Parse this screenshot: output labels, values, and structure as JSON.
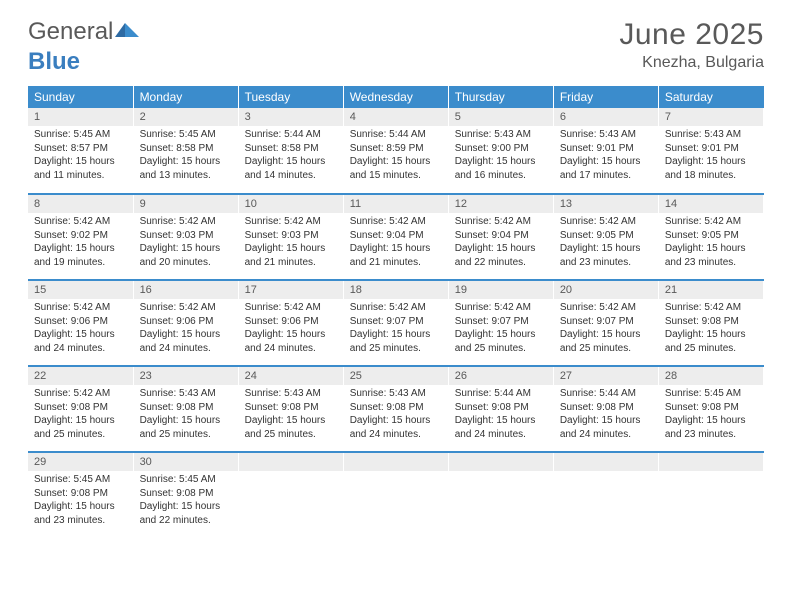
{
  "brand": {
    "part1": "General",
    "part2": "Blue"
  },
  "title": {
    "month": "June 2025",
    "location": "Knezha, Bulgaria"
  },
  "colors": {
    "header_bg": "#3b8ccc",
    "header_text": "#ffffff",
    "daynum_bg": "#ededed",
    "text": "#333333",
    "muted": "#595959",
    "rule": "#3b8ccc"
  },
  "weekdays": [
    "Sunday",
    "Monday",
    "Tuesday",
    "Wednesday",
    "Thursday",
    "Friday",
    "Saturday"
  ],
  "days": [
    {
      "n": "1",
      "sr": "5:45 AM",
      "ss": "8:57 PM",
      "dl": "15 hours and 11 minutes."
    },
    {
      "n": "2",
      "sr": "5:45 AM",
      "ss": "8:58 PM",
      "dl": "15 hours and 13 minutes."
    },
    {
      "n": "3",
      "sr": "5:44 AM",
      "ss": "8:58 PM",
      "dl": "15 hours and 14 minutes."
    },
    {
      "n": "4",
      "sr": "5:44 AM",
      "ss": "8:59 PM",
      "dl": "15 hours and 15 minutes."
    },
    {
      "n": "5",
      "sr": "5:43 AM",
      "ss": "9:00 PM",
      "dl": "15 hours and 16 minutes."
    },
    {
      "n": "6",
      "sr": "5:43 AM",
      "ss": "9:01 PM",
      "dl": "15 hours and 17 minutes."
    },
    {
      "n": "7",
      "sr": "5:43 AM",
      "ss": "9:01 PM",
      "dl": "15 hours and 18 minutes."
    },
    {
      "n": "8",
      "sr": "5:42 AM",
      "ss": "9:02 PM",
      "dl": "15 hours and 19 minutes."
    },
    {
      "n": "9",
      "sr": "5:42 AM",
      "ss": "9:03 PM",
      "dl": "15 hours and 20 minutes."
    },
    {
      "n": "10",
      "sr": "5:42 AM",
      "ss": "9:03 PM",
      "dl": "15 hours and 21 minutes."
    },
    {
      "n": "11",
      "sr": "5:42 AM",
      "ss": "9:04 PM",
      "dl": "15 hours and 21 minutes."
    },
    {
      "n": "12",
      "sr": "5:42 AM",
      "ss": "9:04 PM",
      "dl": "15 hours and 22 minutes."
    },
    {
      "n": "13",
      "sr": "5:42 AM",
      "ss": "9:05 PM",
      "dl": "15 hours and 23 minutes."
    },
    {
      "n": "14",
      "sr": "5:42 AM",
      "ss": "9:05 PM",
      "dl": "15 hours and 23 minutes."
    },
    {
      "n": "15",
      "sr": "5:42 AM",
      "ss": "9:06 PM",
      "dl": "15 hours and 24 minutes."
    },
    {
      "n": "16",
      "sr": "5:42 AM",
      "ss": "9:06 PM",
      "dl": "15 hours and 24 minutes."
    },
    {
      "n": "17",
      "sr": "5:42 AM",
      "ss": "9:06 PM",
      "dl": "15 hours and 24 minutes."
    },
    {
      "n": "18",
      "sr": "5:42 AM",
      "ss": "9:07 PM",
      "dl": "15 hours and 25 minutes."
    },
    {
      "n": "19",
      "sr": "5:42 AM",
      "ss": "9:07 PM",
      "dl": "15 hours and 25 minutes."
    },
    {
      "n": "20",
      "sr": "5:42 AM",
      "ss": "9:07 PM",
      "dl": "15 hours and 25 minutes."
    },
    {
      "n": "21",
      "sr": "5:42 AM",
      "ss": "9:08 PM",
      "dl": "15 hours and 25 minutes."
    },
    {
      "n": "22",
      "sr": "5:42 AM",
      "ss": "9:08 PM",
      "dl": "15 hours and 25 minutes."
    },
    {
      "n": "23",
      "sr": "5:43 AM",
      "ss": "9:08 PM",
      "dl": "15 hours and 25 minutes."
    },
    {
      "n": "24",
      "sr": "5:43 AM",
      "ss": "9:08 PM",
      "dl": "15 hours and 25 minutes."
    },
    {
      "n": "25",
      "sr": "5:43 AM",
      "ss": "9:08 PM",
      "dl": "15 hours and 24 minutes."
    },
    {
      "n": "26",
      "sr": "5:44 AM",
      "ss": "9:08 PM",
      "dl": "15 hours and 24 minutes."
    },
    {
      "n": "27",
      "sr": "5:44 AM",
      "ss": "9:08 PM",
      "dl": "15 hours and 24 minutes."
    },
    {
      "n": "28",
      "sr": "5:45 AM",
      "ss": "9:08 PM",
      "dl": "15 hours and 23 minutes."
    },
    {
      "n": "29",
      "sr": "5:45 AM",
      "ss": "9:08 PM",
      "dl": "15 hours and 23 minutes."
    },
    {
      "n": "30",
      "sr": "5:45 AM",
      "ss": "9:08 PM",
      "dl": "15 hours and 22 minutes."
    }
  ],
  "labels": {
    "sunrise": "Sunrise:",
    "sunset": "Sunset:",
    "daylight": "Daylight:"
  },
  "layout": {
    "cols": 7,
    "rows": 5,
    "start_weekday": 0,
    "trailing_empty": 5
  }
}
